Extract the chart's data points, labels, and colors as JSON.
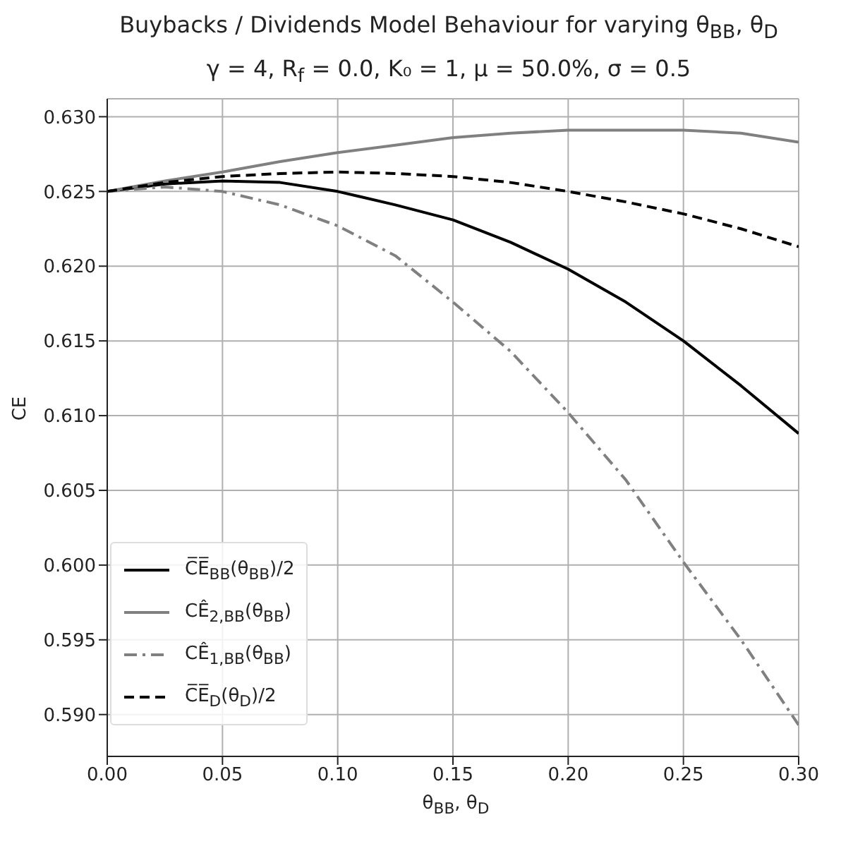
{
  "chart_data": {
    "type": "line",
    "title": "Buybacks / Dividends Model Behaviour for varying θ$_{BB}$, θ$_{D}$",
    "subtitle": "γ = 4, R$_{f}$ = 0.0, K₀ = 1, μ = 50.0%, σ = 0.5",
    "xlabel": "θ$_{BB}$, θ$_{D}$",
    "ylabel": "CE",
    "x": [
      0,
      0.025,
      0.05,
      0.075,
      0.1,
      0.125,
      0.15,
      0.175,
      0.2,
      0.225,
      0.25,
      0.275,
      0.3
    ],
    "series": [
      {
        "name": "C̅E̅$_{BB}$(θ$_{BB}$)/2",
        "color": "#000000",
        "line_style": "solid",
        "values": [
          0.625,
          0.6255,
          0.6257,
          0.6256,
          0.625,
          0.6241,
          0.6231,
          0.6216,
          0.6198,
          0.6176,
          0.615,
          0.612,
          0.6088
        ]
      },
      {
        "name": "CÊ$_{2,BB}$(θ$_{BB}$)",
        "color": "#808080",
        "line_style": "solid",
        "values": [
          0.625,
          0.6257,
          0.6263,
          0.627,
          0.6276,
          0.6281,
          0.6286,
          0.6289,
          0.6291,
          0.6291,
          0.6291,
          0.6289,
          0.6283
        ]
      },
      {
        "name": "CÊ$_{1,BB}$(θ$_{BB}$)",
        "color": "#808080",
        "line_style": "dashdot",
        "values": [
          0.625,
          0.6253,
          0.625,
          0.6241,
          0.6227,
          0.6207,
          0.6176,
          0.6143,
          0.6102,
          0.6057,
          0.6002,
          0.595,
          0.5893
        ]
      },
      {
        "name": "C̅E̅$_{D}$(θ$_{D}$)/2",
        "color": "#000000",
        "line_style": "dashed",
        "values": [
          0.625,
          0.6256,
          0.626,
          0.6262,
          0.6263,
          0.6262,
          0.626,
          0.6256,
          0.625,
          0.6243,
          0.6235,
          0.6225,
          0.6213
        ]
      }
    ],
    "xlim": [
      0,
      0.3
    ],
    "xticks": [
      {
        "value": 0,
        "label": "0.00"
      },
      0.05,
      {
        "value": 0.1,
        "label": "0.10"
      },
      0.15,
      {
        "value": 0.2,
        "label": "0.20"
      },
      0.25,
      {
        "value": 0.3,
        "label": "0.30"
      }
    ],
    "ylim": [
      0.5872,
      0.6312
    ],
    "yticks": [
      {
        "value": 0.59,
        "label": "0.590"
      },
      0.595,
      {
        "value": 0.6,
        "label": "0.600"
      },
      0.605,
      {
        "value": 0.61,
        "label": "0.610"
      },
      0.615,
      {
        "value": 0.62,
        "label": "0.620"
      },
      0.625,
      {
        "value": 0.63,
        "label": "0.630"
      }
    ],
    "grid": true,
    "legend": "bottom left",
    "marker": "none"
  }
}
